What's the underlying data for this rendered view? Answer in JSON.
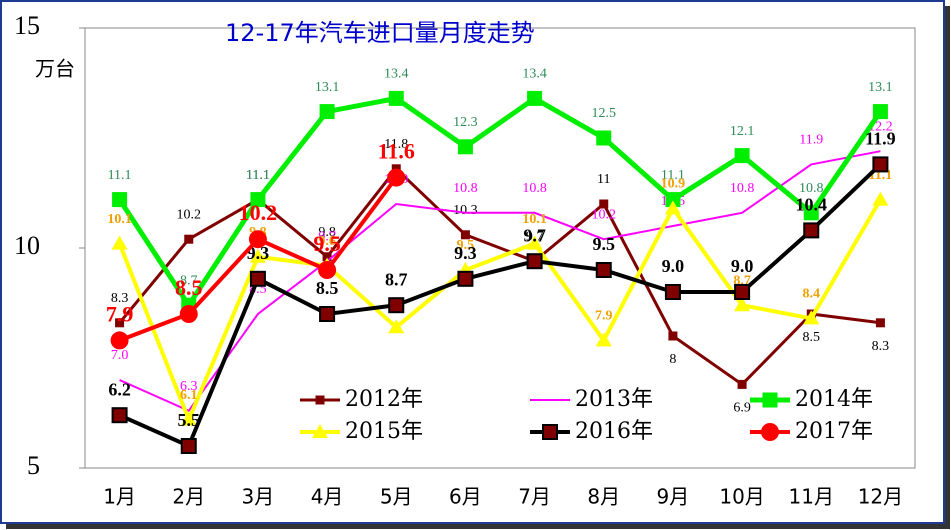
{
  "chart_data": {
    "type": "line",
    "title": "12-17年汽车进口量月度走势",
    "y_label": "万台",
    "categories": [
      "1月",
      "2月",
      "3月",
      "4月",
      "5月",
      "6月",
      "7月",
      "8月",
      "9月",
      "10月",
      "11月",
      "12月"
    ],
    "ylim": [
      5,
      15
    ],
    "yticks": [
      5,
      10,
      15
    ],
    "grid": false,
    "series": [
      {
        "name": "2012年",
        "color": "#800000",
        "label_color": "#000000",
        "marker": "square",
        "values": [
          8.3,
          10.2,
          11.1,
          9.8,
          11.8,
          10.3,
          9.7,
          11.0,
          8.0,
          6.9,
          8.5,
          8.3
        ]
      },
      {
        "name": "2013年",
        "color": "#ff00ff",
        "label_color": "#ff00ff",
        "marker": "none",
        "values": [
          7.0,
          6.3,
          8.5,
          9.7,
          11.0,
          10.8,
          10.8,
          10.2,
          10.5,
          10.8,
          11.9,
          12.2
        ],
        "value_labels": [
          "7.0",
          "6.3",
          "8.5",
          "9.7",
          "11.0",
          "10.8",
          "10.8",
          "10.2",
          "10.5",
          "10.8",
          "11.9",
          "12.2"
        ]
      },
      {
        "name": "2014年",
        "color": "#00ee00",
        "label_color": "#2e8b57",
        "marker": "square",
        "values": [
          11.1,
          8.7,
          11.1,
          13.1,
          13.4,
          12.3,
          13.4,
          12.5,
          11.1,
          12.1,
          10.8,
          13.1
        ]
      },
      {
        "name": "2015年",
        "color": "#ffff00",
        "label_color": "#f0a000",
        "marker": "triangle",
        "values": [
          10.1,
          6.1,
          9.8,
          9.6,
          8.2,
          9.5,
          10.1,
          7.9,
          10.9,
          8.7,
          8.4,
          11.1
        ]
      },
      {
        "name": "2016年",
        "color": "#000000",
        "label_color": "#000000",
        "marker": "square",
        "values": [
          6.2,
          5.5,
          9.3,
          8.5,
          8.7,
          9.3,
          9.7,
          9.5,
          9.0,
          9.0,
          10.4,
          11.9
        ],
        "value_labels": [
          "6.2",
          "5.5",
          "9.3",
          "8.5",
          "8.7",
          "9.3",
          "9.7",
          "9.5",
          "9.0",
          "9.0",
          "10.4",
          "11.9"
        ]
      },
      {
        "name": "2017年",
        "color": "#ff0000",
        "label_color": "#ff0000",
        "marker": "circle",
        "values": [
          7.9,
          8.5,
          10.2,
          9.5,
          11.6,
          null,
          null,
          null,
          null,
          null,
          null,
          null
        ]
      }
    ]
  }
}
